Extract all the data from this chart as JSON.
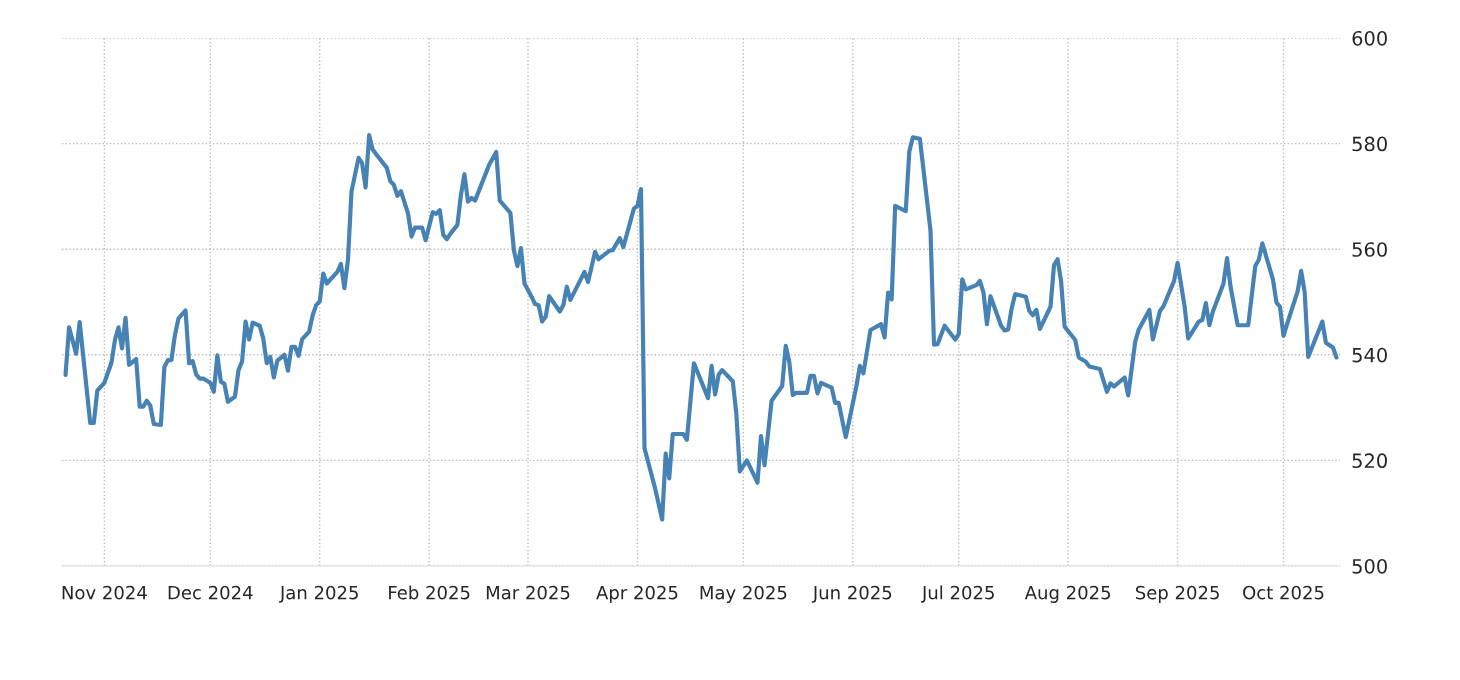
{
  "chart_data": {
    "type": "line",
    "x": [
      "2024-10-21",
      "2024-10-22",
      "2024-10-24",
      "2024-10-25",
      "2024-10-28",
      "2024-10-29",
      "2024-10-30",
      "2024-11-01",
      "2024-11-03",
      "2024-11-04",
      "2024-11-05",
      "2024-11-06",
      "2024-11-07",
      "2024-11-08",
      "2024-11-10",
      "2024-11-11",
      "2024-11-12",
      "2024-11-13",
      "2024-11-14",
      "2024-11-15",
      "2024-11-17",
      "2024-11-18",
      "2024-11-19",
      "2024-11-20",
      "2024-11-21",
      "2024-11-22",
      "2024-11-24",
      "2024-11-25",
      "2024-11-26",
      "2024-11-27",
      "2024-11-28",
      "2024-11-29",
      "2024-12-01",
      "2024-12-02",
      "2024-12-03",
      "2024-12-04",
      "2024-12-05",
      "2024-12-06",
      "2024-12-08",
      "2024-12-09",
      "2024-12-10",
      "2024-12-11",
      "2024-12-12",
      "2024-12-13",
      "2024-12-15",
      "2024-12-16",
      "2024-12-17",
      "2024-12-18",
      "2024-12-19",
      "2024-12-20",
      "2024-12-22",
      "2024-12-23",
      "2024-12-24",
      "2024-12-25",
      "2024-12-26",
      "2024-12-27",
      "2024-12-29",
      "2024-12-30",
      "2024-12-31",
      "2025-01-01",
      "2025-01-02",
      "2025-01-03",
      "2025-01-06",
      "2025-01-07",
      "2025-01-08",
      "2025-01-09",
      "2025-01-10",
      "2025-01-12",
      "2025-01-13",
      "2025-01-14",
      "2025-01-15",
      "2025-01-16",
      "2025-01-17",
      "2025-01-20",
      "2025-01-21",
      "2025-01-22",
      "2025-01-23",
      "2025-01-24",
      "2025-01-26",
      "2025-01-27",
      "2025-01-28",
      "2025-01-30",
      "2025-01-31",
      "2025-02-02",
      "2025-02-03",
      "2025-02-04",
      "2025-02-05",
      "2025-02-06",
      "2025-02-07",
      "2025-02-09",
      "2025-02-10",
      "2025-02-11",
      "2025-02-12",
      "2025-02-13",
      "2025-02-14",
      "2025-02-18",
      "2025-02-20",
      "2025-02-21",
      "2025-02-24",
      "2025-02-25",
      "2025-02-26",
      "2025-02-27",
      "2025-02-28",
      "2025-03-02",
      "2025-03-03",
      "2025-03-04",
      "2025-03-05",
      "2025-03-06",
      "2025-03-07",
      "2025-03-10",
      "2025-03-11",
      "2025-03-12",
      "2025-03-13",
      "2025-03-17",
      "2025-03-18",
      "2025-03-20",
      "2025-03-21",
      "2025-03-24",
      "2025-03-25",
      "2025-03-27",
      "2025-03-28",
      "2025-03-31",
      "2025-04-01",
      "2025-04-02",
      "2025-04-03",
      "2025-04-06",
      "2025-04-08",
      "2025-04-09",
      "2025-04-10",
      "2025-04-11",
      "2025-04-14",
      "2025-04-15",
      "2025-04-17",
      "2025-04-21",
      "2025-04-22",
      "2025-04-23",
      "2025-04-24",
      "2025-04-25",
      "2025-04-28",
      "2025-04-29",
      "2025-04-30",
      "2025-05-02",
      "2025-05-05",
      "2025-05-06",
      "2025-05-07",
      "2025-05-09",
      "2025-05-12",
      "2025-05-13",
      "2025-05-14",
      "2025-05-15",
      "2025-05-16",
      "2025-05-19",
      "2025-05-20",
      "2025-05-21",
      "2025-05-22",
      "2025-05-23",
      "2025-05-26",
      "2025-05-27",
      "2025-05-28",
      "2025-05-30",
      "2025-06-02",
      "2025-06-03",
      "2025-06-04",
      "2025-06-06",
      "2025-06-09",
      "2025-06-10",
      "2025-06-11",
      "2025-06-12",
      "2025-06-13",
      "2025-06-16",
      "2025-06-17",
      "2025-06-18",
      "2025-06-20",
      "2025-06-23",
      "2025-06-24",
      "2025-06-25",
      "2025-06-27",
      "2025-06-30",
      "2025-07-01",
      "2025-07-02",
      "2025-07-03",
      "2025-07-06",
      "2025-07-07",
      "2025-07-08",
      "2025-07-09",
      "2025-07-10",
      "2025-07-13",
      "2025-07-14",
      "2025-07-15",
      "2025-07-16",
      "2025-07-17",
      "2025-07-20",
      "2025-07-21",
      "2025-07-22",
      "2025-07-23",
      "2025-07-24",
      "2025-07-27",
      "2025-07-28",
      "2025-07-29",
      "2025-07-30",
      "2025-07-31",
      "2025-08-03",
      "2025-08-04",
      "2025-08-06",
      "2025-08-07",
      "2025-08-10",
      "2025-08-12",
      "2025-08-13",
      "2025-08-14",
      "2025-08-17",
      "2025-08-18",
      "2025-08-20",
      "2025-08-21",
      "2025-08-24",
      "2025-08-25",
      "2025-08-27",
      "2025-08-28",
      "2025-08-31",
      "2025-09-01",
      "2025-09-03",
      "2025-09-04",
      "2025-09-07",
      "2025-09-08",
      "2025-09-09",
      "2025-09-10",
      "2025-09-11",
      "2025-09-14",
      "2025-09-15",
      "2025-09-16",
      "2025-09-18",
      "2025-09-21",
      "2025-09-23",
      "2025-09-24",
      "2025-09-25",
      "2025-09-28",
      "2025-09-29",
      "2025-09-30",
      "2025-10-01",
      "2025-10-02",
      "2025-10-05",
      "2025-10-06",
      "2025-10-07",
      "2025-10-08",
      "2025-10-12",
      "2025-10-13",
      "2025-10-15",
      "2025-10-16"
    ],
    "series": [
      {
        "color": "#4682b4",
        "values": [
          536.2,
          545.2,
          540.2,
          546.2,
          527.1,
          527.1,
          533.2,
          534.7,
          538.5,
          542.8,
          545.2,
          541.2,
          547.0,
          538.1,
          539.2,
          530.2,
          530.2,
          531.3,
          530.4,
          526.9,
          526.7,
          537.7,
          539.0,
          539.0,
          543.8,
          546.9,
          548.4,
          538.4,
          538.8,
          536.3,
          535.5,
          535.5,
          534.7,
          533.0,
          539.9,
          534.9,
          534.5,
          531.1,
          532.1,
          537.1,
          538.7,
          546.3,
          542.9,
          546.1,
          545.5,
          543.1,
          538.4,
          539.6,
          535.7,
          538.9,
          540.0,
          537.0,
          541.5,
          541.5,
          539.8,
          542.9,
          544.4,
          547.5,
          549.4,
          550.1,
          555.4,
          553.5,
          555.7,
          557.2,
          552.6,
          558.0,
          570.9,
          577.3,
          576.3,
          571.7,
          581.6,
          578.9,
          578.0,
          575.4,
          572.9,
          572.2,
          570.1,
          571.0,
          566.8,
          562.4,
          564.1,
          564.1,
          561.7,
          567.0,
          566.7,
          567.4,
          562.7,
          561.9,
          562.9,
          564.6,
          570.3,
          574.2,
          569.0,
          569.7,
          569.2,
          576.0,
          578.4,
          569.2,
          566.9,
          559.8,
          556.8,
          560.2,
          553.5,
          551.0,
          549.6,
          549.4,
          546.3,
          547.2,
          551.1,
          548.2,
          549.4,
          552.9,
          550.4,
          555.7,
          553.8,
          559.5,
          558.1,
          559.7,
          559.8,
          562.1,
          560.4,
          567.7,
          568.2,
          571.4,
          522.3,
          514.7,
          508.8,
          521.3,
          516.6,
          525.0,
          525.0,
          523.9,
          538.4,
          531.8,
          537.9,
          532.5,
          536.2,
          537.1,
          535.0,
          528.9,
          517.9,
          520.0,
          515.8,
          524.6,
          519.1,
          531.3,
          534.1,
          541.7,
          538.7,
          532.4,
          532.8,
          532.8,
          536.0,
          536.0,
          532.7,
          534.7,
          533.8,
          530.9,
          530.9,
          524.4,
          534.0,
          537.9,
          536.5,
          544.7,
          545.8,
          543.3,
          551.8,
          550.5,
          568.2,
          567.2,
          578.5,
          581.2,
          580.9,
          563.6,
          541.9,
          542.0,
          545.5,
          542.9,
          543.9,
          554.3,
          552.4,
          553.2,
          554.0,
          551.8,
          545.8,
          551.1,
          545.5,
          544.6,
          544.8,
          548.8,
          551.5,
          551.0,
          548.3,
          547.5,
          548.5,
          544.9,
          549.1,
          557.0,
          558.1,
          553.9,
          545.3,
          542.8,
          539.5,
          538.7,
          537.8,
          537.3,
          533.0,
          534.6,
          534.0,
          535.7,
          532.3,
          542.5,
          544.8,
          548.5,
          542.9,
          548.3,
          549.2,
          554.0,
          557.4,
          549.1,
          543.1,
          546.3,
          546.6,
          549.8,
          545.6,
          548.2,
          553.5,
          558.3,
          552.9,
          545.6,
          545.6,
          556.8,
          558.0,
          561.1,
          554.3,
          549.9,
          549.1,
          543.6,
          545.8,
          552.0,
          555.9,
          551.8,
          539.6,
          546.3,
          542.3,
          541.4,
          539.5
        ]
      }
    ],
    "xlim": [
      "2024-10-20",
      "2025-10-17"
    ],
    "xticks": [
      {
        "value": "2024-11-01",
        "label": "Nov 2024"
      },
      {
        "value": "2024-12-01",
        "label": "Dec 2024"
      },
      {
        "value": "2025-01-01",
        "label": "Jan 2025"
      },
      {
        "value": "2025-02-01",
        "label": "Feb 2025"
      },
      {
        "value": "2025-03-01",
        "label": "Mar 2025"
      },
      {
        "value": "2025-04-01",
        "label": "Apr 2025"
      },
      {
        "value": "2025-05-01",
        "label": "May 2025"
      },
      {
        "value": "2025-06-01",
        "label": "Jun 2025"
      },
      {
        "value": "2025-07-01",
        "label": "Jul 2025"
      },
      {
        "value": "2025-08-01",
        "label": "Aug 2025"
      },
      {
        "value": "2025-09-01",
        "label": "Sep 2025"
      },
      {
        "value": "2025-10-01",
        "label": "Oct 2025"
      }
    ],
    "ylim": [
      500,
      600
    ],
    "yticks": [
      500,
      520,
      540,
      560,
      580,
      600
    ],
    "grid": true,
    "marker": "none",
    "line_style": "solid"
  }
}
